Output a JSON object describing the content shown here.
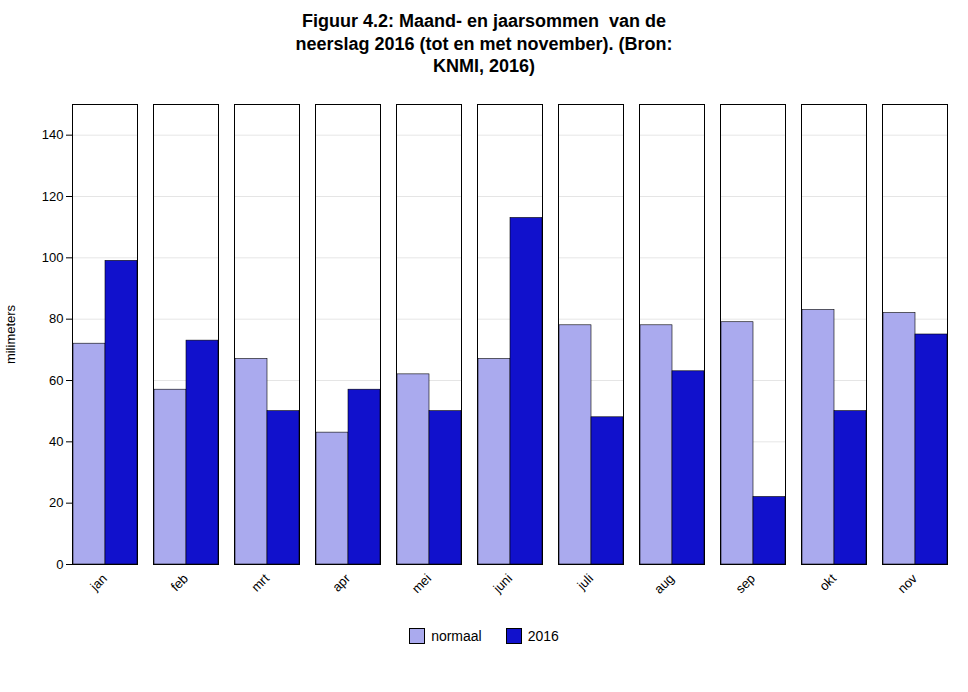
{
  "chart_data": {
    "type": "bar",
    "title": "Figuur 4.2: Maand- en jaarsommen  van de\nneerslag 2016 (tot en met november). (Bron:\nKNMI, 2016)",
    "ylabel": "milimeters",
    "categories": [
      "jan",
      "feb",
      "mrt",
      "apr",
      "mei",
      "juni",
      "juli",
      "aug",
      "sep",
      "okt",
      "nov"
    ],
    "series": [
      {
        "name": "normaal",
        "color": "#aaaaee",
        "values": [
          72,
          57,
          67,
          43,
          62,
          67,
          78,
          78,
          79,
          83,
          82
        ]
      },
      {
        "name": "2016",
        "color": "#1111cc",
        "values": [
          99,
          73,
          50,
          57,
          50,
          113,
          48,
          63,
          22,
          50,
          75
        ]
      }
    ],
    "ylim": [
      0,
      150
    ],
    "yticks": [
      0,
      20,
      40,
      60,
      80,
      100,
      120,
      140
    ],
    "grid": true,
    "legend": "bottom"
  }
}
